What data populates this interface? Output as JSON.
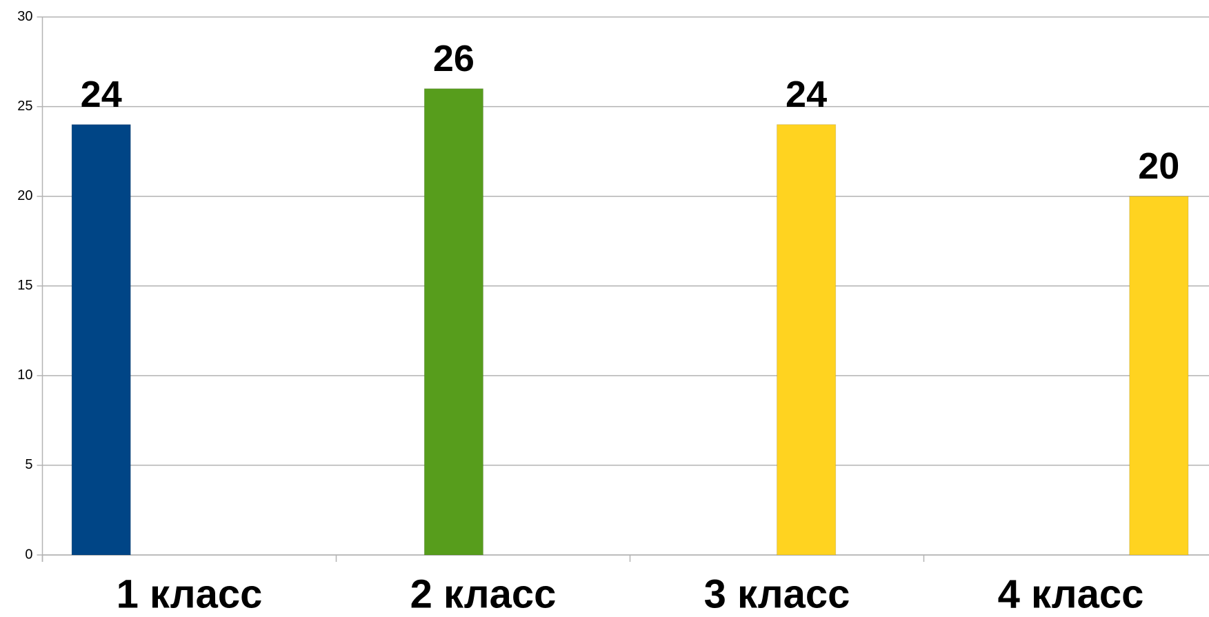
{
  "chart_data": {
    "type": "bar",
    "categories": [
      "1 класс",
      "2 класс",
      "3 класс",
      "4 класс"
    ],
    "series": [
      {
        "color": "#004586",
        "values": [
          24,
          null,
          null,
          null
        ]
      },
      {
        "color": "#579d1c",
        "values": [
          null,
          26,
          null,
          null
        ]
      },
      {
        "color": "#ffd320",
        "values": [
          null,
          null,
          24,
          null
        ]
      },
      {
        "color": "#ffd320",
        "values": [
          null,
          null,
          null,
          20
        ]
      }
    ],
    "ylim": [
      0,
      30
    ],
    "yticks": [
      0,
      5,
      10,
      15,
      20,
      25,
      30
    ],
    "grid": true
  }
}
